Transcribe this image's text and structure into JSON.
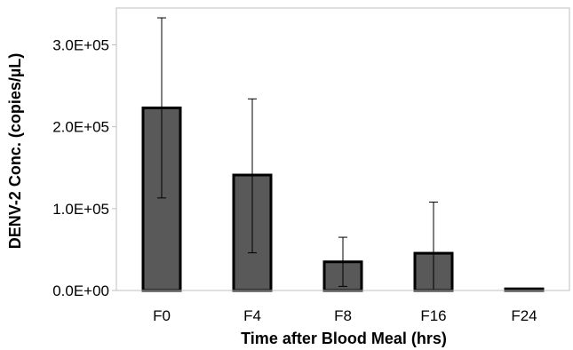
{
  "chart_data": {
    "type": "bar",
    "title": "",
    "xlabel": "Time after Blood Meal (hrs)",
    "ylabel": "DENV-2 Conc. (copies/µL)",
    "categories": [
      "F0",
      "F4",
      "F8",
      "F16",
      "F24"
    ],
    "values": [
      223000,
      141000,
      35000,
      45500,
      2000
    ],
    "error_upper": [
      333000,
      234000,
      65000,
      108000,
      2000
    ],
    "error_lower": [
      113000,
      46000,
      5000,
      0,
      2000
    ],
    "ylim": [
      0,
      345000
    ],
    "yticks": [
      0,
      100000,
      200000,
      300000
    ],
    "ytick_labels": [
      "0.0E+00",
      "1.0E+05",
      "2.0E+05",
      "3.0E+05"
    ],
    "bar_color": "#595959",
    "bar_edge_color": "#000000",
    "grid": false,
    "legend": "none"
  }
}
